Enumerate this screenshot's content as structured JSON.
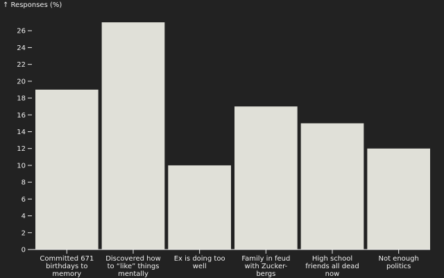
{
  "chart_data": {
    "type": "bar",
    "ylabel": "↑ Responses (%)",
    "ylim": [
      0,
      28
    ],
    "yticks": [
      0,
      2,
      4,
      6,
      8,
      10,
      12,
      14,
      16,
      18,
      20,
      22,
      24,
      26
    ],
    "categories": [
      [
        "Committed 671",
        "birthdays to",
        "memory"
      ],
      [
        "Discovered how",
        "to “like” things",
        "mentally"
      ],
      [
        "Ex is doing too",
        "well"
      ],
      [
        "Family in feud",
        "with Zucker-",
        "bergs"
      ],
      [
        "High school",
        "friends all dead",
        "now"
      ],
      [
        "Not enough",
        "politics"
      ]
    ],
    "values": [
      19,
      27,
      10,
      17,
      15,
      12
    ],
    "colors": {
      "background": "#222222",
      "bar": "#e0e0d8",
      "text": "#f0f0f0"
    }
  }
}
